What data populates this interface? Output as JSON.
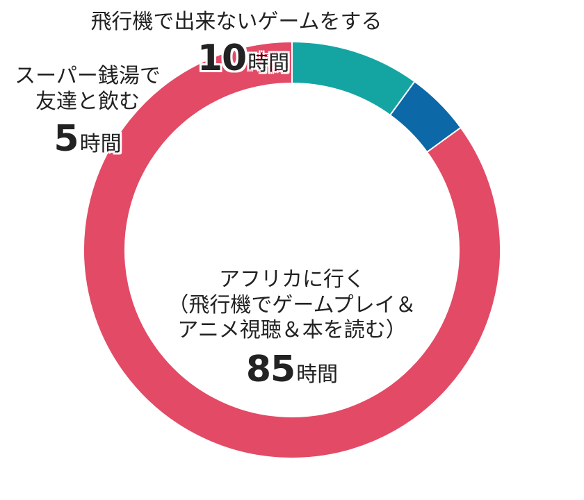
{
  "chart_data": {
    "type": "pie",
    "hole": true,
    "unit": "時間",
    "slices": [
      {
        "label": "アフリカに行く（飛行機でゲームプレイ＆アニメ視聴＆本を読む）",
        "label_lines": [
          "アフリカに行く",
          "（飛行機でゲームプレイ＆",
          "アニメ視聴＆本を読む）"
        ],
        "value": 85,
        "color": "#e34a66"
      },
      {
        "label": "スーパー銭湯で友達と飲む",
        "label_lines": [
          "スーパー銭湯で",
          "友達と飲む"
        ],
        "value": 5,
        "color": "#0c68a6"
      },
      {
        "label": "飛行機で出来ないゲームをする",
        "label_lines": [
          "飛行機で出来ないゲームをする"
        ],
        "value": 10,
        "color": "#14a5a3"
      }
    ]
  }
}
